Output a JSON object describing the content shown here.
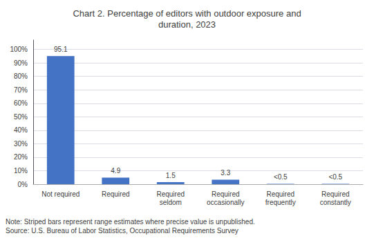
{
  "chart_data": {
    "type": "bar",
    "title": "Chart 2. Percentage of editors with outdoor exposure and\nduration, 2023",
    "categories": [
      "Not required",
      "Required",
      "Required\nseldom",
      "Required\noccasionally",
      "Required\nfrequently",
      "Required\nconstantly"
    ],
    "values": [
      95.1,
      4.9,
      1.5,
      3.3,
      0.3,
      0.3
    ],
    "value_labels": [
      "95.1",
      "4.9",
      "1.5",
      "3.3",
      "<0.5",
      "<0.5"
    ],
    "data_labels": true,
    "color": "#4472C4",
    "ylim": [
      0,
      107
    ],
    "yticks": [
      {
        "value": 0,
        "label": "0%"
      },
      {
        "value": 10,
        "label": "10%"
      },
      {
        "value": 20,
        "label": "20%"
      },
      {
        "value": 30,
        "label": "30%"
      },
      {
        "value": 40,
        "label": "40%"
      },
      {
        "value": 50,
        "label": "50%"
      },
      {
        "value": 60,
        "label": "60%"
      },
      {
        "value": 70,
        "label": "70%"
      },
      {
        "value": 80,
        "label": "80%"
      },
      {
        "value": 90,
        "label": "90%"
      },
      {
        "value": 100,
        "label": "100%"
      }
    ],
    "grid": true,
    "annotations": [
      "Note: Striped bars represent range estimates where precise value is unpublished.",
      "Source: U.S. Bureau of Labor Statistics, Occupational Requirements Survey"
    ]
  }
}
